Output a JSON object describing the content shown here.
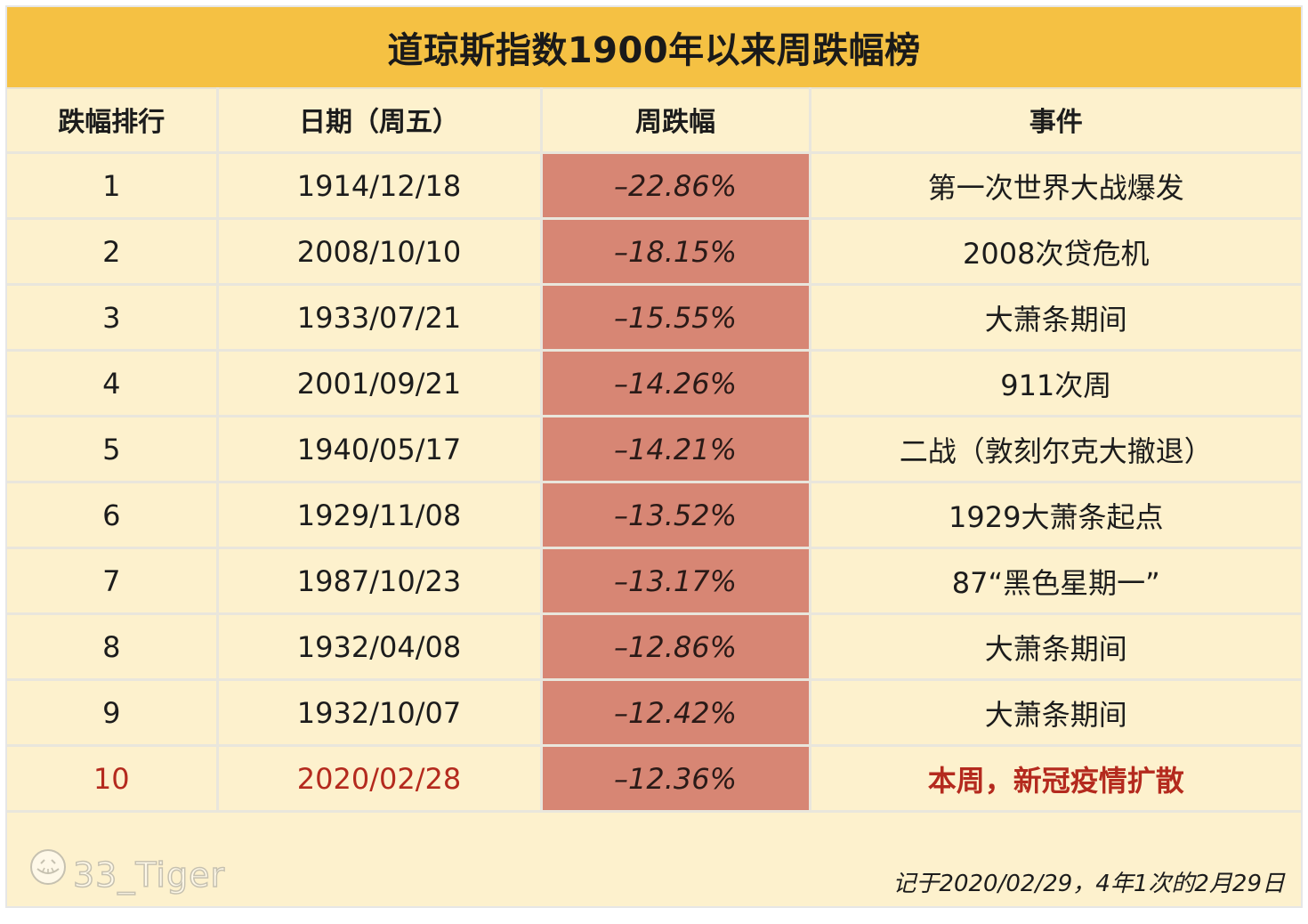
{
  "title": "道琼斯指数1900年以来周跌幅榜",
  "table": {
    "headers": [
      "跌幅排行",
      "日期（周五）",
      "周跌幅",
      "事件"
    ],
    "rows": [
      {
        "rank": "1",
        "date": "1914/12/18",
        "drop": "–22.86%",
        "event": "第一次世界大战爆发",
        "highlight": false
      },
      {
        "rank": "2",
        "date": "2008/10/10",
        "drop": "–18.15%",
        "event": "2008次贷危机",
        "highlight": false
      },
      {
        "rank": "3",
        "date": "1933/07/21",
        "drop": "–15.55%",
        "event": "大萧条期间",
        "highlight": false
      },
      {
        "rank": "4",
        "date": "2001/09/21",
        "drop": "–14.26%",
        "event": "911次周",
        "highlight": false
      },
      {
        "rank": "5",
        "date": "1940/05/17",
        "drop": "–14.21%",
        "event": "二战（敦刻尔克大撤退）",
        "highlight": false
      },
      {
        "rank": "6",
        "date": "1929/11/08",
        "drop": "–13.52%",
        "event": "1929大萧条起点",
        "highlight": false
      },
      {
        "rank": "7",
        "date": "1987/10/23",
        "drop": "–13.17%",
        "event": "87“黑色星期一”",
        "highlight": false
      },
      {
        "rank": "8",
        "date": "1932/04/08",
        "drop": "–12.86%",
        "event": "大萧条期间",
        "highlight": false
      },
      {
        "rank": "9",
        "date": "1932/10/07",
        "drop": "–12.42%",
        "event": "大萧条期间",
        "highlight": false
      },
      {
        "rank": "10",
        "date": "2020/02/28",
        "drop": "–12.36%",
        "event": "本周，新冠疫情扩散",
        "highlight": true
      }
    ]
  },
  "watermark": {
    "text": "33_Tiger",
    "icon": "tiger-logo-icon"
  },
  "footnote": "记于2020/02/29，4年1次的2月29日",
  "colors": {
    "title_bg": "#f5c143",
    "table_bg": "#fdf1cd",
    "drop_cell_bg": "#d78674",
    "highlight_text": "#b42a1e"
  }
}
